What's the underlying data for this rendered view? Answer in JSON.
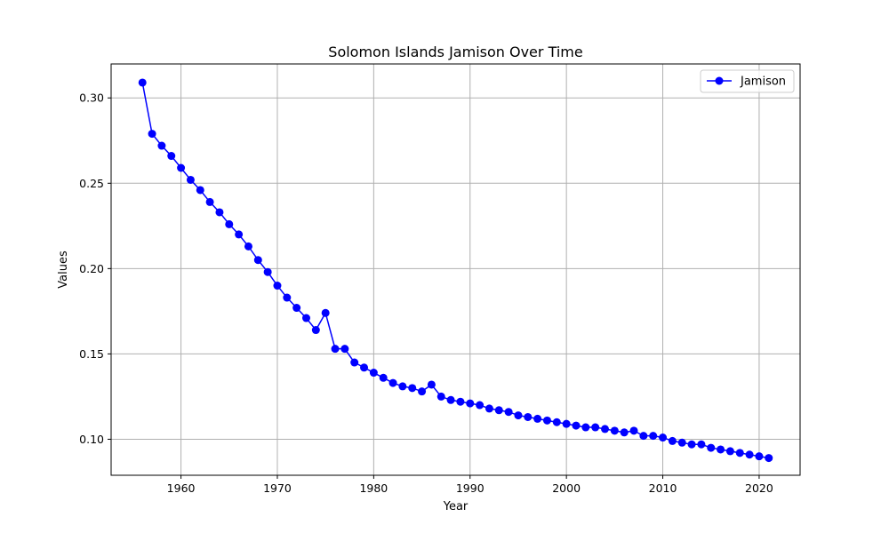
{
  "chart_data": {
    "type": "line",
    "title": "Solomon Islands Jamison Over Time",
    "xlabel": "Year",
    "ylabel": "Values",
    "xlim": [
      1952.75,
      2024.25
    ],
    "ylim": [
      0.0789,
      0.3199
    ],
    "x_ticks": [
      1960,
      1970,
      1980,
      1990,
      2000,
      2010,
      2020
    ],
    "y_ticks": [
      0.1,
      0.15,
      0.2,
      0.25,
      0.3
    ],
    "x_tick_labels": [
      "1960",
      "1970",
      "1980",
      "1990",
      "2000",
      "2010",
      "2020"
    ],
    "y_tick_labels": [
      "0.10",
      "0.15",
      "0.20",
      "0.25",
      "0.30"
    ],
    "grid": true,
    "legend_position": "top-right",
    "series": [
      {
        "name": "Jamison",
        "color": "#0000ff",
        "marker": "circle",
        "x": [
          1956,
          1957,
          1958,
          1959,
          1960,
          1961,
          1962,
          1963,
          1964,
          1965,
          1966,
          1967,
          1968,
          1969,
          1970,
          1971,
          1972,
          1973,
          1974,
          1975,
          1976,
          1977,
          1978,
          1979,
          1980,
          1981,
          1982,
          1983,
          1984,
          1985,
          1986,
          1987,
          1988,
          1989,
          1990,
          1991,
          1992,
          1993,
          1994,
          1995,
          1996,
          1997,
          1998,
          1999,
          2000,
          2001,
          2002,
          2003,
          2004,
          2005,
          2006,
          2007,
          2008,
          2009,
          2010,
          2011,
          2012,
          2013,
          2014,
          2015,
          2016,
          2017,
          2018,
          2019,
          2020,
          2021
        ],
        "y": [
          0.309,
          0.279,
          0.272,
          0.266,
          0.259,
          0.252,
          0.246,
          0.239,
          0.233,
          0.226,
          0.22,
          0.213,
          0.205,
          0.198,
          0.19,
          0.183,
          0.177,
          0.171,
          0.164,
          0.174,
          0.153,
          0.153,
          0.145,
          0.142,
          0.139,
          0.136,
          0.133,
          0.131,
          0.13,
          0.128,
          0.132,
          0.125,
          0.123,
          0.122,
          0.121,
          0.12,
          0.118,
          0.117,
          0.116,
          0.114,
          0.113,
          0.112,
          0.111,
          0.11,
          0.109,
          0.108,
          0.107,
          0.107,
          0.106,
          0.105,
          0.104,
          0.105,
          0.102,
          0.102,
          0.101,
          0.099,
          0.098,
          0.097,
          0.097,
          0.095,
          0.094,
          0.093,
          0.092,
          0.091,
          0.09,
          0.089
        ]
      }
    ]
  }
}
